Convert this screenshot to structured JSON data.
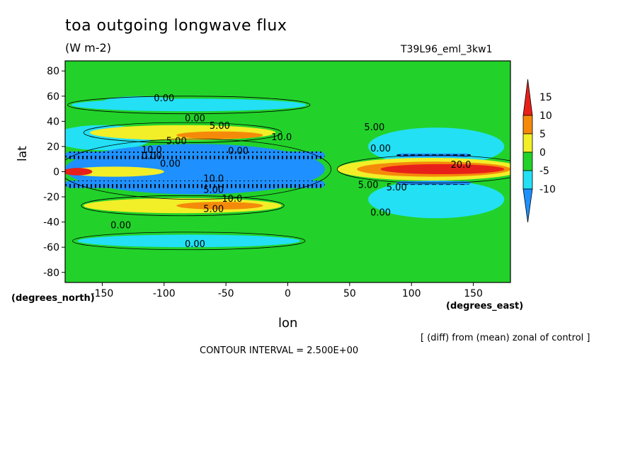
{
  "chart_data": {
    "type": "heatmap",
    "title": "toa outgoing longwave flux",
    "units": "(W m-2)",
    "run_id": "T39L96_eml_3kw1",
    "xlabel": "lon",
    "ylabel": "lat",
    "x_unit_note": "(degrees_east)",
    "y_unit_note": "(degrees_north)",
    "xlim": [
      -180,
      180
    ],
    "ylim": [
      -88,
      88
    ],
    "x_ticks": [
      -150,
      -100,
      -50,
      0,
      50,
      100,
      150
    ],
    "y_ticks": [
      80,
      60,
      40,
      20,
      0,
      -20,
      -40,
      -60,
      -80
    ],
    "colorbar": {
      "levels": [
        15,
        10,
        5,
        0,
        -5,
        -10
      ],
      "colors": [
        "#e8201a",
        "#f58a0a",
        "#f2ee28",
        "#22d22a",
        "#23e0f5",
        "#1e90ff"
      ]
    },
    "contour_labels": [
      "0.00",
      "0.00",
      "5.00",
      "10.0",
      "5.00",
      "10.0",
      "0.00",
      "10.0",
      "5.00",
      "10.0",
      "5.00",
      "0.00",
      "0.00",
      "5.00",
      "0.00",
      "5.00",
      "0.00",
      "20.0",
      "5.00",
      "0.00",
      "0.00"
    ],
    "note": "[ (diff) from (mean) zonal of control ]",
    "contour_interval": "CONTOUR INTERVAL = 2.500E+00"
  }
}
